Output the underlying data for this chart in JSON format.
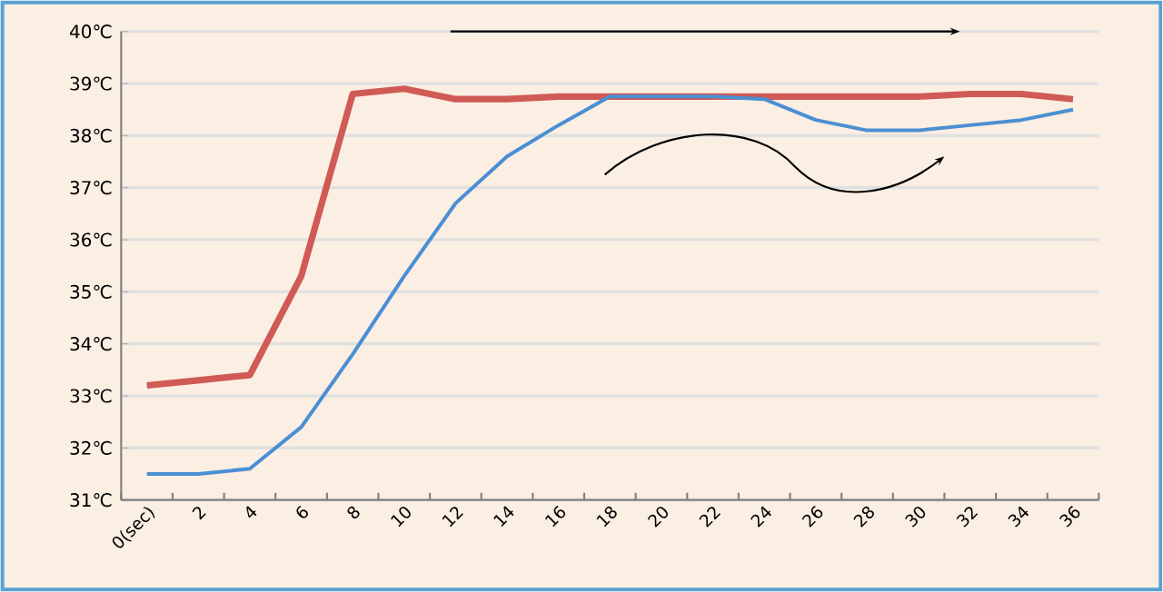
{
  "chart_data": {
    "type": "line",
    "categories": [
      "0(sec)",
      "2",
      "4",
      "6",
      "8",
      "10",
      "12",
      "14",
      "16",
      "18",
      "20",
      "22",
      "24",
      "26",
      "28",
      "30",
      "32",
      "34",
      "36"
    ],
    "series": [
      {
        "color": "#d05a55",
        "values": [
          33.2,
          33.3,
          33.4,
          35.3,
          38.8,
          38.9,
          38.7,
          38.7,
          38.75,
          38.75,
          38.75,
          38.75,
          38.75,
          38.75,
          38.75,
          38.75,
          38.8,
          38.8,
          38.7
        ]
      },
      {
        "color": "#4a8fd4",
        "values": [
          31.5,
          31.5,
          31.6,
          32.4,
          33.8,
          35.3,
          36.7,
          37.6,
          38.2,
          38.75,
          38.75,
          38.75,
          38.7,
          38.3,
          38.1,
          38.1,
          38.2,
          38.3,
          38.5
        ]
      }
    ],
    "ylim": [
      31,
      40
    ],
    "yticks": [
      {
        "value": 31,
        "label": "31℃"
      },
      {
        "value": 32,
        "label": "32℃"
      },
      {
        "value": 33,
        "label": "33℃"
      },
      {
        "value": 34,
        "label": "34℃"
      },
      {
        "value": 35,
        "label": "35℃"
      },
      {
        "value": 36,
        "label": "36℃"
      },
      {
        "value": 37,
        "label": "37℃"
      },
      {
        "value": 38,
        "label": "38℃"
      },
      {
        "value": 39,
        "label": "39℃"
      },
      {
        "value": 40,
        "label": "40℃"
      }
    ],
    "grid": "y",
    "legend": false,
    "marker": "none",
    "line_style": "solid"
  }
}
